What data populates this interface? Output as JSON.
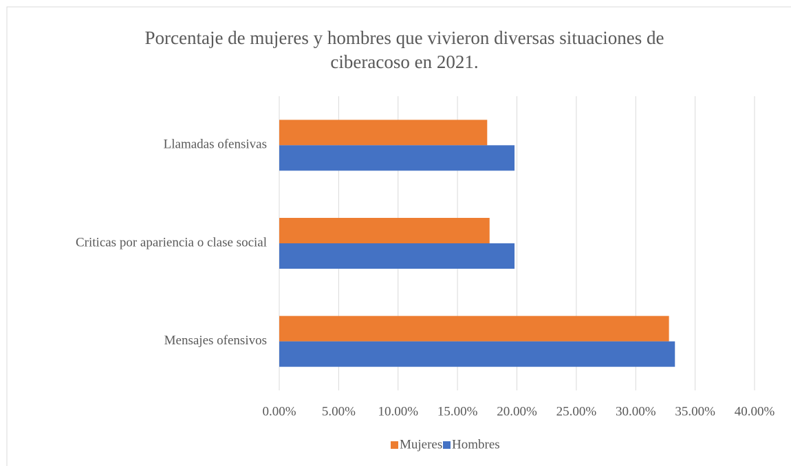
{
  "chart_data": {
    "type": "barh",
    "title": "Porcentaje de mujeres y hombres que vivieron diversas situaciones de ciberacoso en 2021.",
    "title_lines": [
      "Porcentaje de mujeres y hombres que vivieron diversas situaciones de",
      "ciberacoso en 2021."
    ],
    "categories": [
      "Mensajes ofensivos",
      "Criticas por apariencia o clase social",
      "Llamadas ofensivas"
    ],
    "series": [
      {
        "name": "Mujeres",
        "color": "#ed7d31",
        "values": [
          32.8,
          17.7,
          17.5
        ]
      },
      {
        "name": "Hombres",
        "color": "#4472c4",
        "values": [
          33.3,
          19.8,
          19.8
        ]
      }
    ],
    "xlim": [
      0,
      40
    ],
    "xticks": [
      {
        "value": 0,
        "label": "0.00%"
      },
      {
        "value": 5,
        "label": "5.00%"
      },
      {
        "value": 10,
        "label": "10.00%"
      },
      {
        "value": 15,
        "label": "15.00%"
      },
      {
        "value": 20,
        "label": "20.00%"
      },
      {
        "value": 25,
        "label": "25.00%"
      },
      {
        "value": 30,
        "label": "30.00%"
      },
      {
        "value": 35,
        "label": "35.00%"
      },
      {
        "value": 40,
        "label": "40.00%"
      }
    ],
    "grid": true,
    "legend": "bottom"
  }
}
